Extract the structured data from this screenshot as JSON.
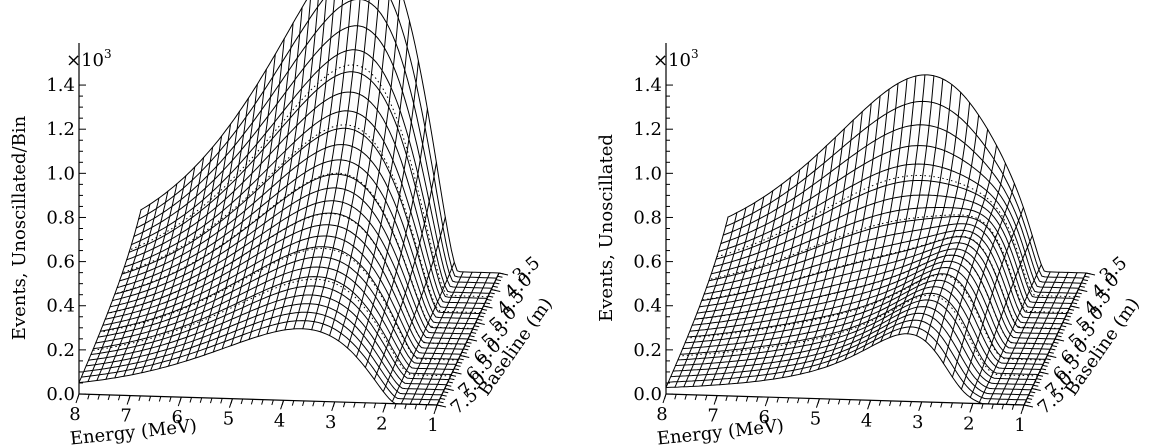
{
  "chart_data": [
    {
      "type": "surface3d",
      "panel": "left",
      "ylabel": "Events, Unoscillated/Bin",
      "multiplier": "×10",
      "multiplier_exp": "3",
      "zlim": [
        0,
        1.5
      ],
      "z_ticks": [
        "0.0",
        "0.2",
        "0.4",
        "0.6",
        "0.8",
        "1.0",
        "1.2",
        "1.4"
      ],
      "xlabel": "Energy (MeV)",
      "energy_ticks": [
        "8",
        "7",
        "6",
        "5",
        "4",
        "3",
        "2",
        "1"
      ],
      "energy_range": [
        1,
        8
      ],
      "baseline_label": "Baseline (m)",
      "baseline_ticks": [
        "3.5",
        "4.0",
        "4.5",
        "5.0",
        "5.5",
        "6.0",
        "6.5",
        "7.0",
        "7.5"
      ],
      "baseline_range": [
        3.5,
        7.5
      ],
      "peak": {
        "energy": 2.0,
        "baseline": 3.5,
        "events": 1.5
      },
      "grid": true
    },
    {
      "type": "surface3d",
      "panel": "right",
      "ylabel": "Events, Unoscillated",
      "multiplier": "×10",
      "multiplier_exp": "3",
      "zlim": [
        0,
        1.5
      ],
      "z_ticks": [
        "0.0",
        "0.2",
        "0.4",
        "0.6",
        "0.8",
        "1.0",
        "1.2",
        "1.4"
      ],
      "xlabel": "Energy (MeV)",
      "energy_ticks": [
        "8",
        "7",
        "6",
        "5",
        "4",
        "3",
        "2",
        "1"
      ],
      "energy_range": [
        1,
        8
      ],
      "baseline_label": "Baseline (m)",
      "baseline_ticks": [
        "3.5",
        "4.0",
        "4.5",
        "5.0",
        "5.5",
        "6.0",
        "6.5",
        "7.0",
        "7.5"
      ],
      "baseline_range": [
        3.5,
        7.5
      ],
      "peak": {
        "energy": 2.0,
        "baseline": 3.5,
        "events": 1.5
      },
      "oscillation_dip": {
        "energy": 1.9,
        "baseline": 7.5
      },
      "grid": true
    }
  ]
}
